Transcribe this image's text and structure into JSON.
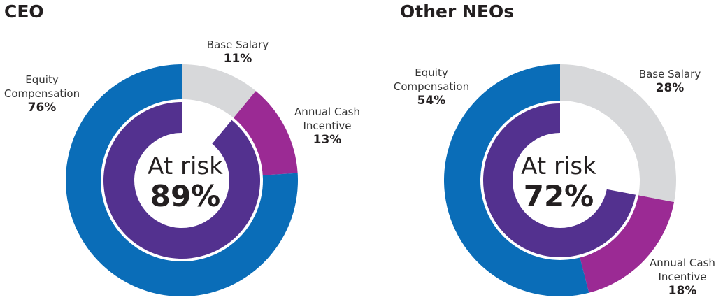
{
  "chart_data": [
    {
      "type": "pie",
      "title": "CEO",
      "slices": [
        {
          "label": "Base Salary",
          "value": 11,
          "value_label": "11%",
          "color": "#d7d8da"
        },
        {
          "label": "Annual Cash Incentive",
          "value": 13,
          "value_label": "13%",
          "color": "#9b2a94"
        },
        {
          "label": "Equity Compensation",
          "value": 76,
          "value_label": "76%",
          "color": "#0a6db8"
        }
      ],
      "inner_ring": {
        "value": 89,
        "color": "#53318f"
      },
      "center_title": "At risk",
      "center_value": "89%"
    },
    {
      "type": "pie",
      "title": "Other NEOs",
      "slices": [
        {
          "label": "Base Salary",
          "value": 28,
          "value_label": "28%",
          "color": "#d7d8da"
        },
        {
          "label": "Annual Cash Incentive",
          "value": 18,
          "value_label": "18%",
          "color": "#9b2a94"
        },
        {
          "label": "Equity Compensation",
          "value": 54,
          "value_label": "54%",
          "color": "#0a6db8"
        }
      ],
      "inner_ring": {
        "value": 72,
        "color": "#53318f"
      },
      "center_title": "At risk",
      "center_value": "72%"
    }
  ]
}
